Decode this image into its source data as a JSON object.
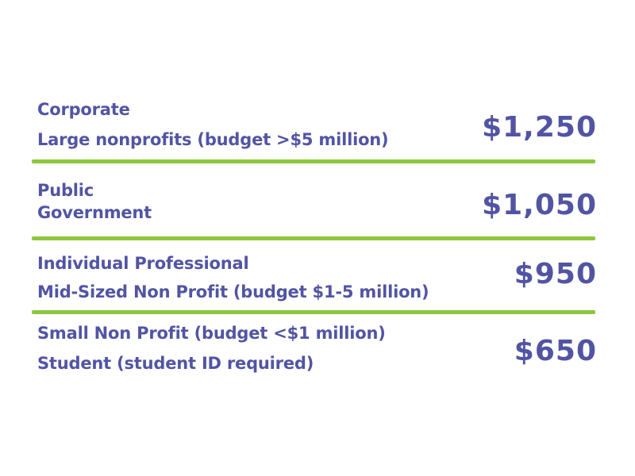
{
  "pricing": {
    "tiers": [
      {
        "categories": [
          "Corporate",
          "Large nonprofits (budget >$5 million)"
        ],
        "price": "$1,250"
      },
      {
        "categories": [
          "Public",
          "Government"
        ],
        "price": "$1,050"
      },
      {
        "categories": [
          "Individual Professional",
          "Mid-Sized Non Profit (budget $1-5 million)"
        ],
        "price": "$950"
      },
      {
        "categories": [
          "Small Non Profit (budget <$1 million)",
          "Student (student ID required)"
        ],
        "price": "$650"
      }
    ]
  },
  "colors": {
    "text": "#5254a3",
    "divider": "#8dc63f",
    "background": "#ffffff"
  }
}
